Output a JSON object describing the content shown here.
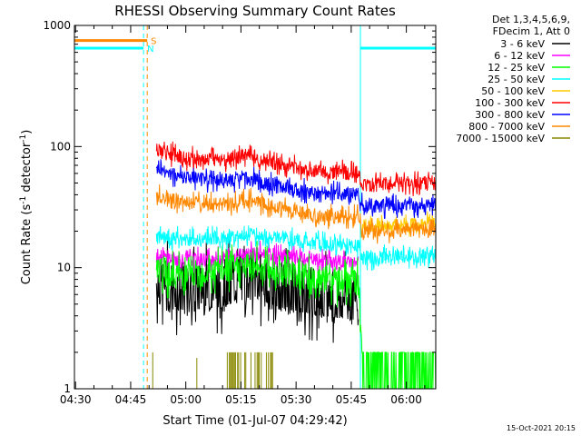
{
  "chart_data": {
    "type": "line",
    "title": "RHESSI Observing Summary Count Rates",
    "xlabel": "Start Time (01-Jul-07 04:29:42)",
    "ylabel": "Count Rate (s⁻¹ detector⁻¹)",
    "ylabel_parts": {
      "main": "Count Rate (s",
      "exp1": "-1",
      "mid": " detector",
      "exp2": "-1",
      "end": ")"
    },
    "yscale": "log",
    "ylim": [
      1,
      1000
    ],
    "xlim": [
      "04:29:42",
      "06:08:00"
    ],
    "x_ticks": [
      "04:30",
      "04:45",
      "05:00",
      "05:15",
      "05:30",
      "05:45",
      "06:00"
    ],
    "y_ticks": [
      "1",
      "10",
      "100",
      "1000"
    ],
    "legend_position": "top-right",
    "legend_header": [
      "Det 1,3,4,5,6,9,",
      "FDecim 1, Att 0"
    ],
    "series": [
      {
        "name": "3 - 6 keV",
        "color": "#000000",
        "x": [
          "04:52",
          "05:00",
          "05:10",
          "05:18",
          "05:25",
          "05:35",
          "05:45",
          "05:47",
          "05:48"
        ],
        "values": [
          7.5,
          6.5,
          7,
          8.5,
          7,
          6,
          5.5,
          5.5,
          null
        ]
      },
      {
        "name": "6 - 12 keV",
        "color": "#ff00ff",
        "x": [
          "04:52",
          "05:00",
          "05:10",
          "05:18",
          "05:25",
          "05:35",
          "05:45",
          "05:47",
          "05:48",
          "06:08"
        ],
        "values": [
          12.5,
          11.5,
          12,
          13.5,
          12.5,
          11.5,
          11,
          11,
          null,
          null
        ]
      },
      {
        "name": "12 - 25 keV",
        "color": "#00ff00",
        "x": [
          "04:52",
          "05:00",
          "05:10",
          "05:18",
          "05:25",
          "05:35",
          "05:45",
          "05:47",
          "05:48",
          "06:08"
        ],
        "values": [
          9.5,
          8.5,
          9.5,
          10.5,
          9.5,
          8,
          7.5,
          7.5,
          1.5,
          1.5
        ]
      },
      {
        "name": "25 - 50 keV",
        "color": "#00ffff",
        "x": [
          "04:52",
          "05:00",
          "05:10",
          "05:18",
          "05:25",
          "05:35",
          "05:45",
          "05:47",
          "05:48",
          "06:08"
        ],
        "values": [
          18,
          17,
          17.5,
          19,
          17.5,
          16,
          15.5,
          15.5,
          12,
          12.5
        ]
      },
      {
        "name": "50 - 100 keV",
        "color": "#ffcc00",
        "x": [
          "05:48",
          "06:08"
        ],
        "values": [
          22,
          23
        ]
      },
      {
        "name": "100 - 300 keV",
        "color": "#ff0000",
        "x": [
          "04:52",
          "05:00",
          "05:10",
          "05:18",
          "05:25",
          "05:35",
          "05:45",
          "05:47",
          "05:48",
          "06:08"
        ],
        "values": [
          95,
          80,
          78,
          85,
          72,
          63,
          61,
          60,
          48,
          50
        ]
      },
      {
        "name": "300 - 800 keV",
        "color": "#0000ff",
        "x": [
          "04:52",
          "05:00",
          "05:10",
          "05:18",
          "05:25",
          "05:35",
          "05:45",
          "05:47",
          "05:48",
          "06:08"
        ],
        "values": [
          65,
          55,
          52,
          54,
          47,
          42,
          40,
          40,
          32,
          33
        ]
      },
      {
        "name": "800 - 7000 keV",
        "color": "#ff8800",
        "x": [
          "04:52",
          "05:00",
          "05:10",
          "05:18",
          "05:25",
          "05:35",
          "05:45",
          "05:47",
          "05:48",
          "06:08"
        ],
        "values": [
          40,
          34,
          33,
          36,
          31,
          27,
          26,
          26,
          20,
          21
        ]
      },
      {
        "name": "7000 - 15000 keV",
        "color": "#888800",
        "x": [
          "05:11",
          "05:14",
          "05:16",
          "05:19",
          "05:21",
          "05:24"
        ],
        "values": [
          2,
          1.4,
          2,
          1.6,
          2,
          1.5
        ]
      }
    ],
    "annotations": [
      {
        "text": "S",
        "color": "#ff8800",
        "value": 750,
        "x_range": [
          "04:29:42",
          "04:49:30"
        ]
      },
      {
        "text": "N",
        "color": "#00ffff",
        "value": 650,
        "x_range": [
          "04:29:42",
          "04:48:30"
        ]
      }
    ],
    "cyan_high_segment": {
      "x_range": [
        "05:47:30",
        "06:08:00"
      ],
      "value": 650
    },
    "vertical_markers": [
      {
        "x": "04:29:42",
        "color": "#00ffff",
        "style": "solid"
      },
      {
        "x": "04:48:30",
        "color": "#00ffff",
        "style": "dashed"
      },
      {
        "x": "04:49:30",
        "color": "#ff8800",
        "style": "dashed"
      },
      {
        "x": "05:47:30",
        "color": "#00ffff",
        "style": "solid"
      },
      {
        "x": "06:08:00",
        "color": "#00ffff",
        "style": "dashed"
      }
    ]
  },
  "timestamp": "15-Oct-2021 20:15"
}
